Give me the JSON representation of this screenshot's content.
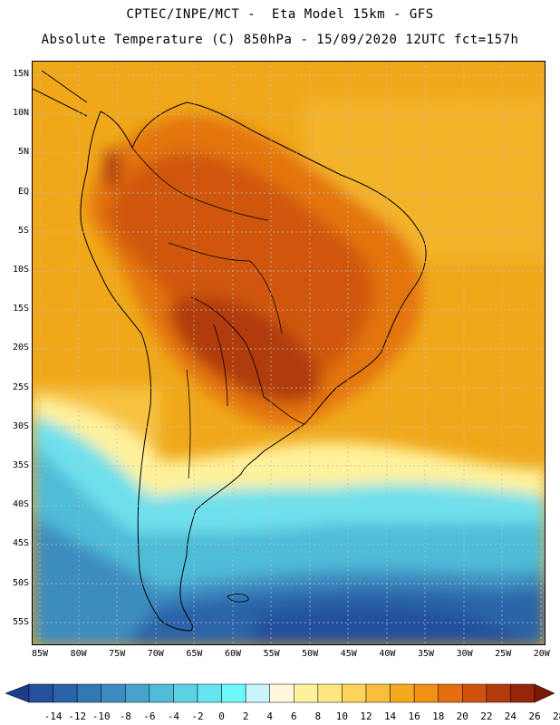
{
  "header": {
    "line1": "CPTEC/INPE/MCT -  Eta Model 15km - GFS",
    "line2": "Absolute Temperature (C) 850hPa - 15/09/2020 12UTC fct=157h"
  },
  "map": {
    "region": "South America",
    "lat_labels": [
      "15N",
      "10N",
      "5N",
      "EQ",
      "5S",
      "10S",
      "15S",
      "20S",
      "25S",
      "30S",
      "35S",
      "40S",
      "45S",
      "50S",
      "55S"
    ],
    "lon_labels": [
      "85W",
      "80W",
      "75W",
      "70W",
      "65W",
      "60W",
      "55W",
      "50W",
      "45W",
      "40W",
      "35W",
      "30W",
      "25W",
      "20W"
    ]
  },
  "colorbar": {
    "labels": [
      "-14",
      "-12",
      "-10",
      "-8",
      "-6",
      "-4",
      "-2",
      "0",
      "2",
      "4",
      "6",
      "8",
      "10",
      "12",
      "14",
      "16",
      "18",
      "20",
      "22",
      "24",
      "26",
      "28"
    ],
    "colors": [
      "#1e3c8c",
      "#24509c",
      "#2a64a8",
      "#3278b4",
      "#3c8cc0",
      "#46a4cc",
      "#50bcd8",
      "#5ad2e4",
      "#64e6f0",
      "#6ef8fa",
      "#c8f4fa",
      "#fff6dc",
      "#fff29c",
      "#ffe682",
      "#fcd45a",
      "#f8be3c",
      "#f4a81e",
      "#f09014",
      "#e46e10",
      "#d0520e",
      "#b43a0c",
      "#962608",
      "#7a1806"
    ]
  }
}
